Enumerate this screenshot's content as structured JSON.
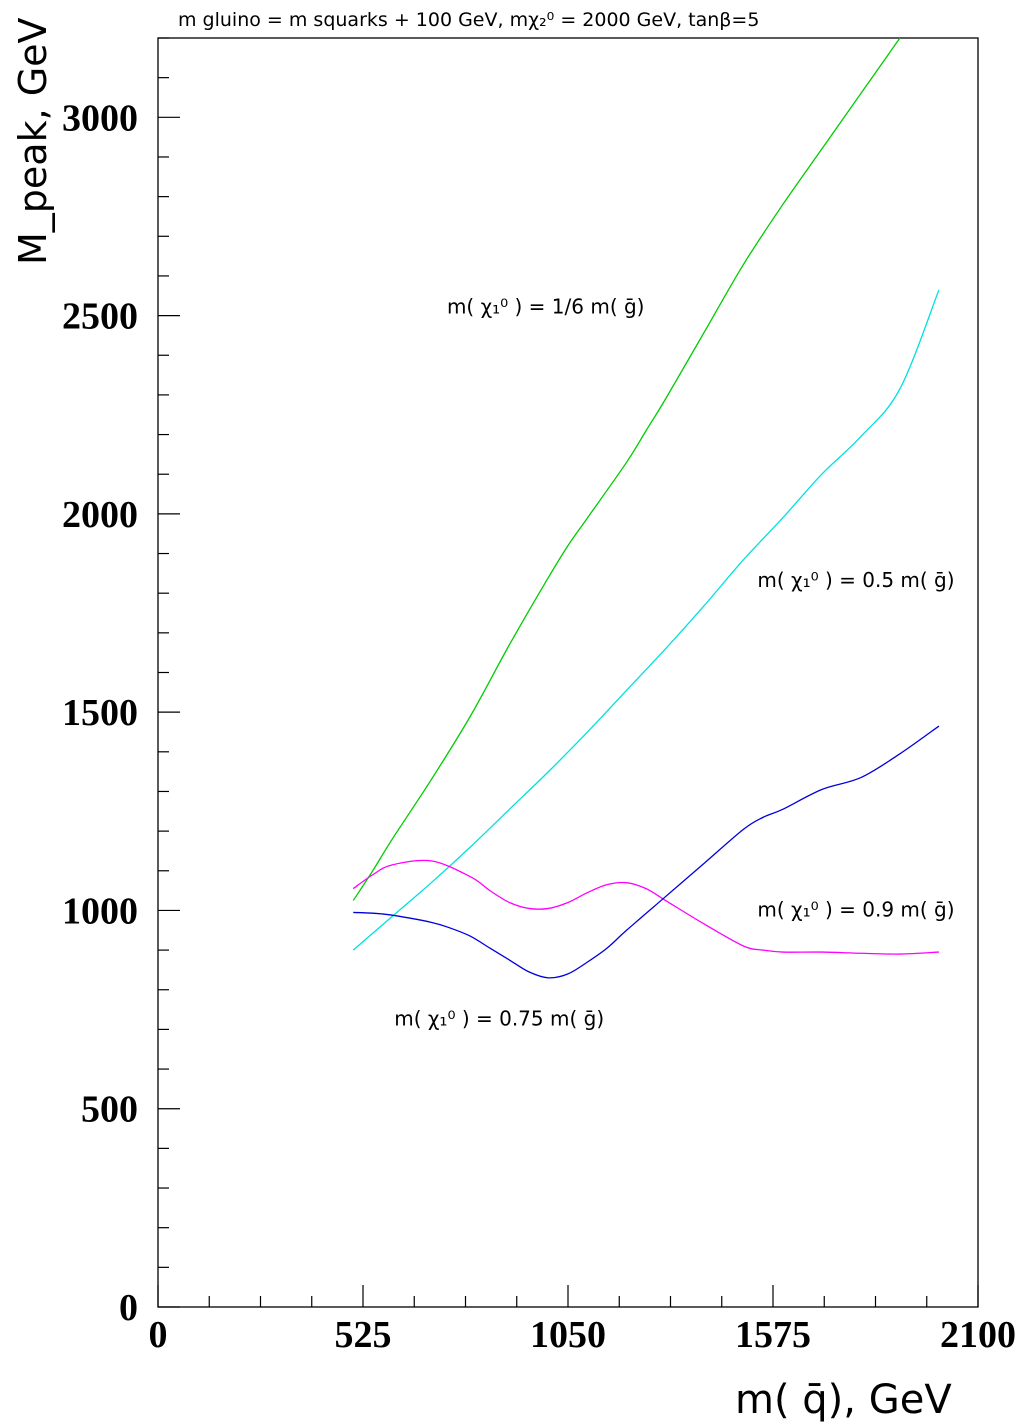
{
  "chart_data": {
    "type": "line",
    "title": "m gluino = m squarks + 100 GeV, mχ₂⁰ = 2000 GeV, tanβ=5",
    "xlabel": "m( q̄),  GeV",
    "ylabel": "M_peak,  GeV",
    "xlim": [
      0,
      2100
    ],
    "ylim": [
      0,
      3200
    ],
    "xticks": [
      0,
      525,
      1050,
      1575,
      2100
    ],
    "yticks": [
      0,
      500,
      1000,
      1500,
      2000,
      2500,
      3000
    ],
    "grid": false,
    "series": [
      {
        "color": "#00cc00",
        "x": [
          500,
          550,
          600,
          700,
          800,
          900,
          1000,
          1050,
          1100,
          1200,
          1250,
          1300,
          1400,
          1500,
          1600,
          1700,
          1800,
          1900
        ],
        "y": [
          1025,
          1100,
          1180,
          1330,
          1490,
          1670,
          1840,
          1920,
          1990,
          2130,
          2210,
          2290,
          2460,
          2630,
          2780,
          2920,
          3060,
          3200
        ]
      },
      {
        "color": "#00e0e0",
        "x": [
          500,
          600,
          700,
          800,
          900,
          1000,
          1100,
          1200,
          1300,
          1400,
          1500,
          1600,
          1700,
          1800,
          1900,
          2000
        ],
        "y": [
          900,
          985,
          1070,
          1160,
          1255,
          1350,
          1450,
          1555,
          1660,
          1770,
          1885,
          1990,
          2100,
          2195,
          2315,
          2565
        ]
      },
      {
        "color": "#ff00ff",
        "x": [
          500,
          550,
          600,
          700,
          800,
          850,
          900,
          950,
          1000,
          1050,
          1100,
          1150,
          1200,
          1250,
          1300,
          1400,
          1500,
          1550,
          1600,
          1700,
          1800,
          1900,
          2000
        ],
        "y": [
          1055,
          1090,
          1115,
          1125,
          1085,
          1050,
          1020,
          1005,
          1005,
          1020,
          1045,
          1065,
          1070,
          1055,
          1025,
          965,
          910,
          900,
          895,
          895,
          892,
          890,
          895
        ]
      },
      {
        "color": "#0000dd",
        "x": [
          500,
          550,
          600,
          700,
          750,
          800,
          850,
          900,
          950,
          1000,
          1050,
          1100,
          1150,
          1200,
          1300,
          1400,
          1500,
          1550,
          1600,
          1700,
          1800,
          1900,
          2000
        ],
        "y": [
          995,
          993,
          988,
          970,
          955,
          935,
          905,
          875,
          845,
          830,
          840,
          870,
          905,
          950,
          1035,
          1120,
          1205,
          1235,
          1255,
          1305,
          1335,
          1395,
          1465
        ]
      }
    ],
    "annotations": [
      {
        "text": "m( χ₁⁰ ) = 1/6 m( ḡ)",
        "x": 740,
        "y": 2505
      },
      {
        "text": "m( χ₁⁰ ) = 0.5 m( ḡ)",
        "x": 1535,
        "y": 1815
      },
      {
        "text": "m( χ₁⁰ ) = 0.9 m( ḡ)",
        "x": 1535,
        "y": 985
      },
      {
        "text": "m( χ₁⁰ ) = 0.75 m( ḡ)",
        "x": 605,
        "y": 710
      }
    ]
  }
}
